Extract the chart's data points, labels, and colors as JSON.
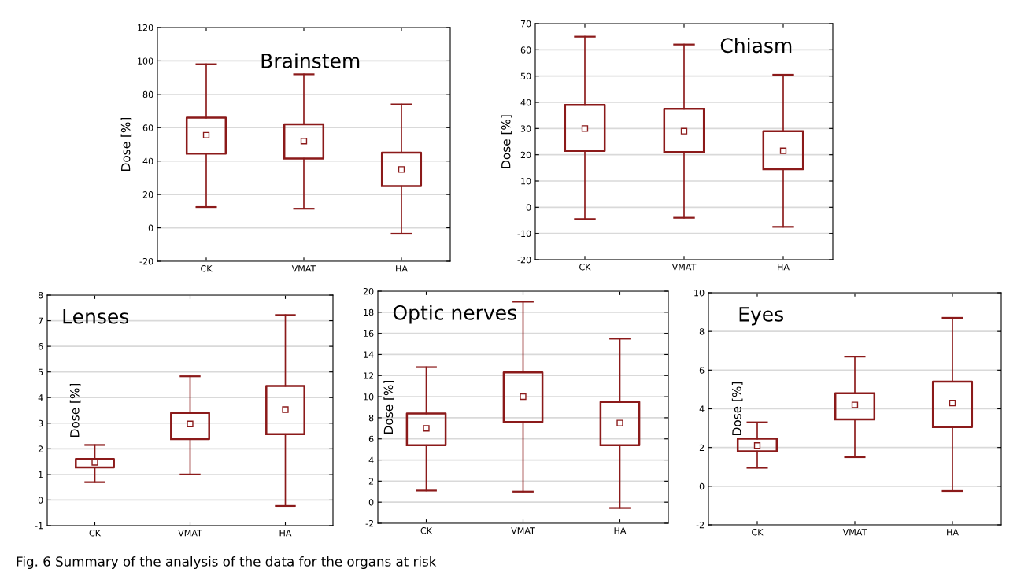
{
  "chart_data": [
    {
      "type": "box",
      "title": "Brainstem",
      "ylabel": "Dose [%]",
      "categories": [
        "CK",
        "VMAT",
        "HA"
      ],
      "color": "#8b1a1a",
      "ylim": [
        -20,
        120
      ],
      "yticks": [
        -20,
        0,
        20,
        40,
        60,
        80,
        100,
        120
      ],
      "grid": "y",
      "marker": "square",
      "boxes": [
        {
          "low": 12.5,
          "q1": 44.5,
          "median": 55.5,
          "q3": 66,
          "high": 98
        },
        {
          "low": 11.5,
          "q1": 41.5,
          "median": 52,
          "q3": 62,
          "high": 92
        },
        {
          "low": -3.5,
          "q1": 25,
          "median": 35,
          "q3": 45,
          "high": 74
        }
      ]
    },
    {
      "type": "box",
      "title": "Chiasm",
      "ylabel": "Dose [%]",
      "categories": [
        "CK",
        "VMAT",
        "HA"
      ],
      "color": "#8b1a1a",
      "ylim": [
        -20,
        70
      ],
      "yticks": [
        -20,
        -10,
        0,
        10,
        20,
        30,
        40,
        50,
        60,
        70
      ],
      "grid": "y",
      "marker": "square",
      "boxes": [
        {
          "low": -4.5,
          "q1": 21.5,
          "median": 30,
          "q3": 39,
          "high": 65
        },
        {
          "low": -4,
          "q1": 21,
          "median": 29,
          "q3": 37.5,
          "high": 62
        },
        {
          "low": -7.5,
          "q1": 14.5,
          "median": 21.5,
          "q3": 29,
          "high": 50.5
        }
      ]
    },
    {
      "type": "box",
      "title": "Lenses",
      "ylabel": "Dose [%]",
      "categories": [
        "CK",
        "VMAT",
        "HA"
      ],
      "color": "#8b1a1a",
      "ylim": [
        -1,
        8
      ],
      "yticks": [
        -1,
        0,
        1,
        2,
        3,
        4,
        5,
        6,
        7,
        8
      ],
      "grid": "y",
      "marker": "square",
      "boxes": [
        {
          "low": 0.7,
          "q1": 1.27,
          "median": 1.47,
          "q3": 1.6,
          "high": 2.15
        },
        {
          "low": 1.0,
          "q1": 2.38,
          "median": 2.97,
          "q3": 3.4,
          "high": 4.83
        },
        {
          "low": -0.23,
          "q1": 2.57,
          "median": 3.53,
          "q3": 4.45,
          "high": 7.22
        }
      ]
    },
    {
      "type": "box",
      "title": "Optic nerves",
      "ylabel": "Dose [%]",
      "categories": [
        "CK",
        "VMAT",
        "HA"
      ],
      "color": "#8b1a1a",
      "ylim": [
        -2,
        20
      ],
      "yticks": [
        -2,
        0,
        2,
        4,
        6,
        8,
        10,
        12,
        14,
        16,
        18,
        20
      ],
      "grid": "y",
      "marker": "square",
      "boxes": [
        {
          "low": 1.1,
          "q1": 5.4,
          "median": 7.0,
          "q3": 8.4,
          "high": 12.8
        },
        {
          "low": 1.0,
          "q1": 7.6,
          "median": 10.0,
          "q3": 12.3,
          "high": 19.0
        },
        {
          "low": -0.55,
          "q1": 5.4,
          "median": 7.5,
          "q3": 9.5,
          "high": 15.5
        }
      ]
    },
    {
      "type": "box",
      "title": "Eyes",
      "ylabel": "Dose [%]",
      "categories": [
        "CK",
        "VMAT",
        "HA"
      ],
      "color": "#8b1a1a",
      "ylim": [
        -2,
        10
      ],
      "yticks": [
        -2,
        0,
        2,
        4,
        6,
        8,
        10
      ],
      "grid": "y",
      "marker": "square",
      "annotations": [
        "Fig. 6 Summary of the analysis of the data for the organs at risk"
      ],
      "boxes": [
        {
          "low": 0.95,
          "q1": 1.8,
          "median": 2.1,
          "q3": 2.45,
          "high": 3.3
        },
        {
          "low": 1.5,
          "q1": 3.45,
          "median": 4.2,
          "q3": 4.8,
          "high": 6.7
        },
        {
          "low": -0.25,
          "q1": 3.05,
          "median": 4.3,
          "q3": 5.4,
          "high": 8.7
        }
      ]
    }
  ]
}
